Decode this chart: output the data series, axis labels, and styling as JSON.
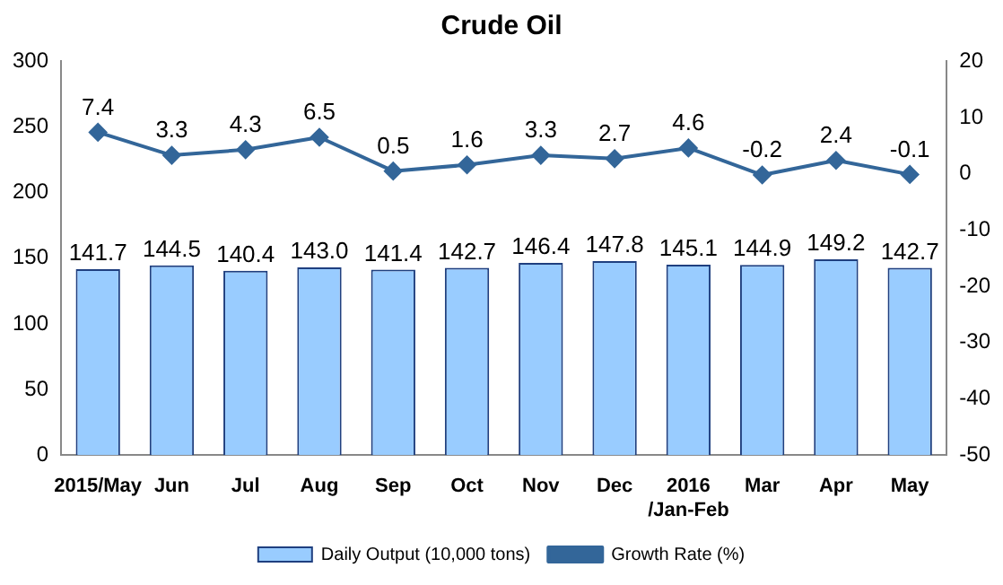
{
  "chart_data": {
    "type": "bar",
    "title": "Crude Oil",
    "categories": [
      "2015/May",
      "Jun",
      "Jul",
      "Aug",
      "Sep",
      "Oct",
      "Nov",
      "Dec",
      "2016\n/Jan-Feb",
      "Mar",
      "Apr",
      "May"
    ],
    "series": [
      {
        "name": "Daily Output (10,000 tons)",
        "color": "#99ccff",
        "values": [
          141.7,
          144.5,
          140.4,
          143.0,
          141.4,
          142.7,
          146.4,
          147.8,
          145.1,
          144.9,
          149.2,
          142.7
        ],
        "value_labels": [
          "141.7",
          "144.5",
          "140.4",
          "143.0",
          "141.4",
          "142.7",
          "146.4",
          "147.8",
          "145.1",
          "144.9",
          "149.2",
          "142.7"
        ]
      },
      {
        "name": "Growth Rate (%)",
        "type": "line",
        "axis": "y2",
        "color": "#336699",
        "values": [
          7.4,
          3.3,
          4.3,
          6.5,
          0.5,
          1.6,
          3.3,
          2.7,
          4.6,
          -0.2,
          2.4,
          -0.1
        ],
        "value_labels": [
          "7.4",
          "3.3",
          "4.3",
          "6.5",
          "0.5",
          "1.6",
          "3.3",
          "2.7",
          "4.6",
          "-0.2",
          "2.4",
          "-0.1"
        ]
      }
    ],
    "ylim": [
      0,
      300
    ],
    "yticks": [
      0,
      50,
      100,
      150,
      200,
      250,
      300
    ],
    "y2lim": [
      -50,
      20
    ],
    "y2ticks": [
      -50,
      -40,
      -30,
      -20,
      -10,
      0,
      10,
      20
    ],
    "legend": "bottom",
    "marker": "diamond",
    "grid": false
  }
}
